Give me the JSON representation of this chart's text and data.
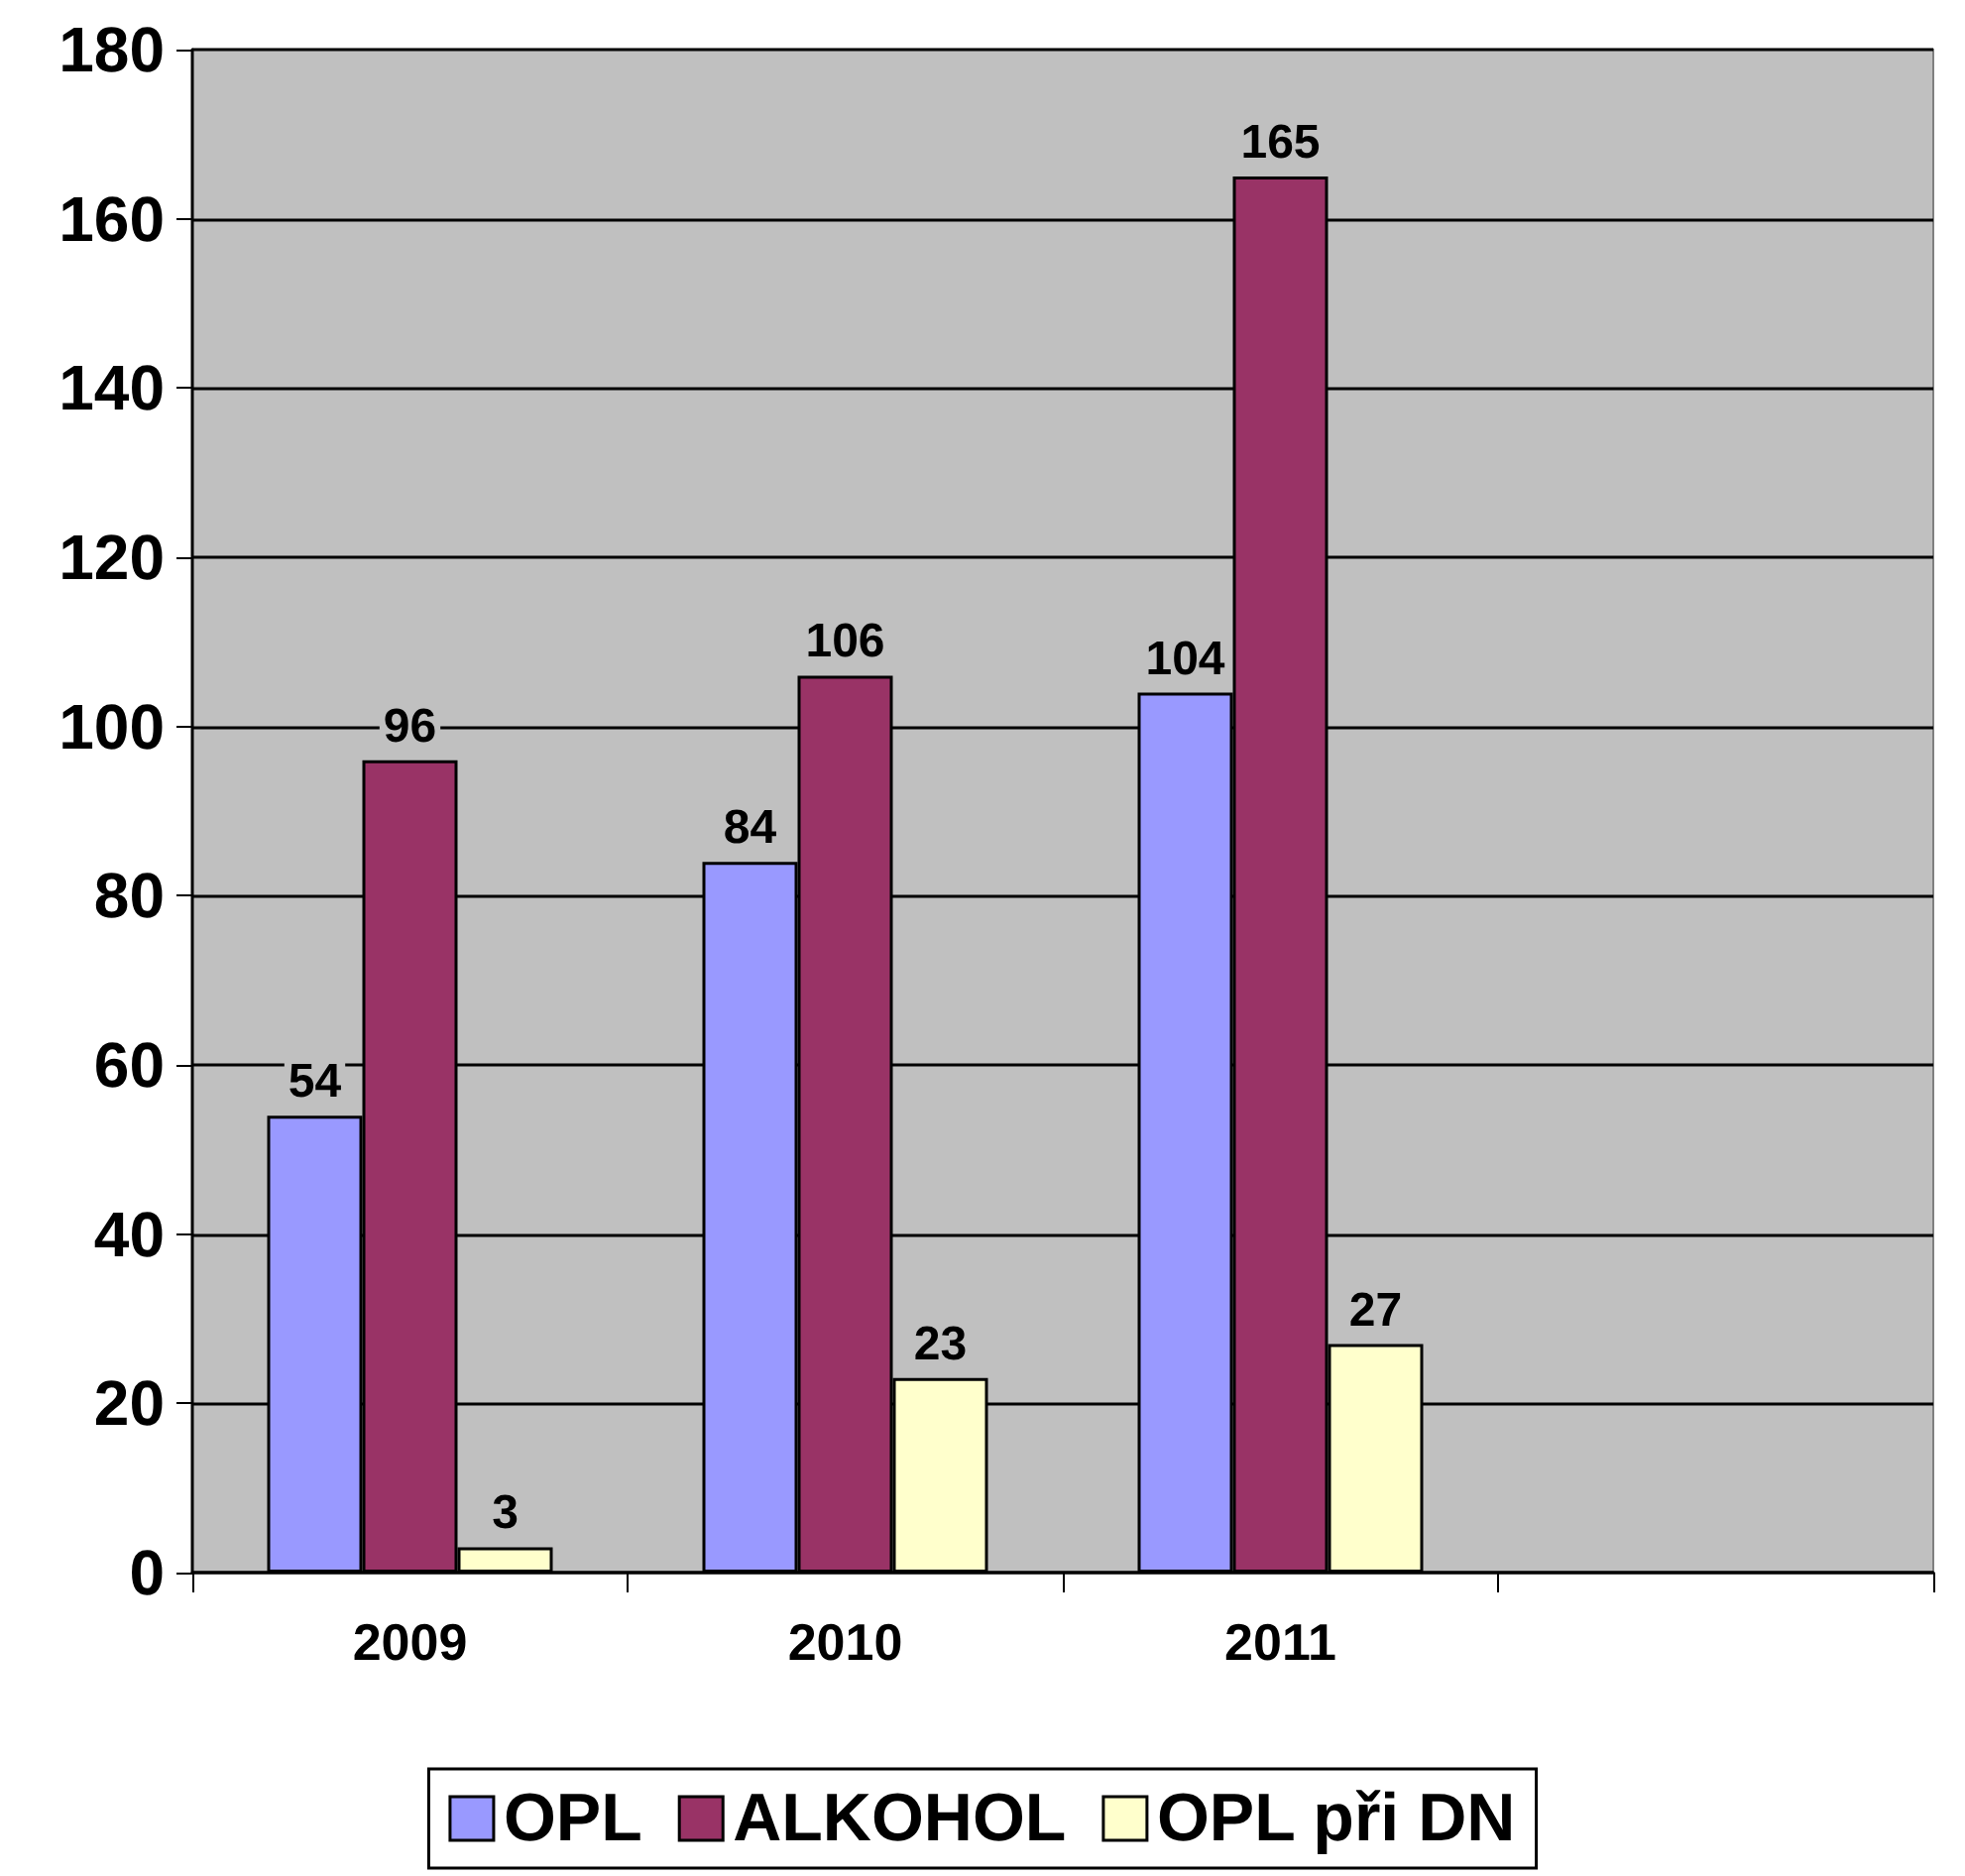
{
  "chart_data": {
    "type": "bar",
    "categories": [
      "2009",
      "2010",
      "2011",
      null
    ],
    "series": [
      {
        "name": "OPL",
        "color": "#9999ff",
        "values": [
          54,
          84,
          104,
          null
        ]
      },
      {
        "name": "ALKOHOL",
        "color": "#993366",
        "values": [
          96,
          106,
          165,
          null
        ]
      },
      {
        "name": "OPL při DN",
        "color": "#ffffcc",
        "values": [
          3,
          23,
          27,
          null
        ]
      }
    ],
    "ylim": [
      0,
      180
    ],
    "yticks": [
      0,
      20,
      40,
      60,
      80,
      100,
      120,
      140,
      160,
      180
    ],
    "grid": "y",
    "legend": "bottom",
    "data_labels": true
  }
}
